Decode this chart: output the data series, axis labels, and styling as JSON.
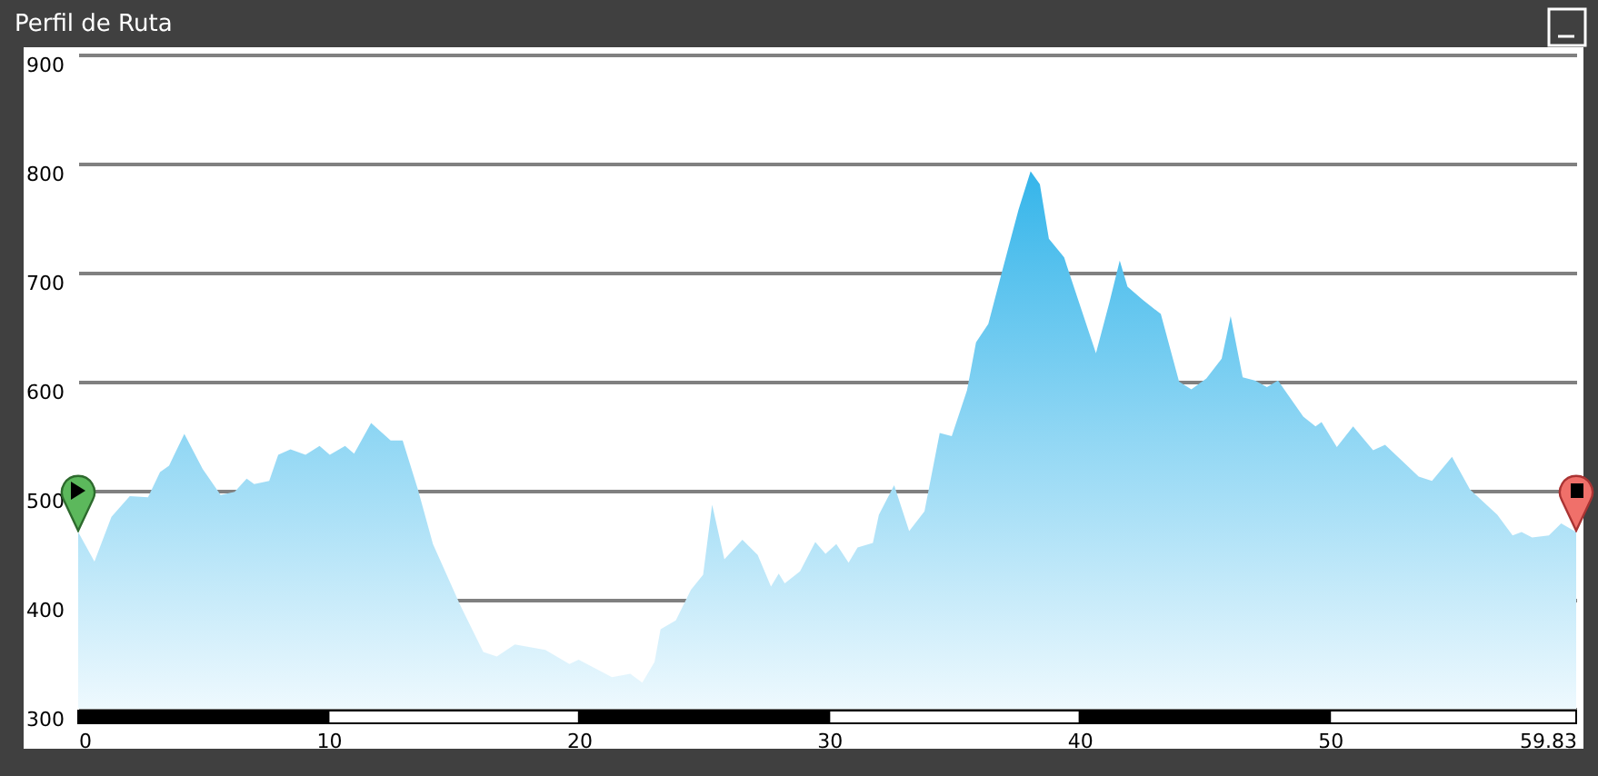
{
  "chart_data": {
    "type": "area",
    "title": "Perfil de Ruta",
    "x": [
      0,
      0.65,
      1.33,
      2.06,
      2.79,
      3.27,
      3.63,
      4.24,
      4.97,
      5.69,
      6.25,
      6.73,
      7.03,
      7.63,
      7.99,
      8.48,
      9.08,
      9.64,
      10.05,
      10.66,
      11.02,
      11.7,
      12.48,
      12.96,
      13.57,
      14.17,
      15.26,
      16.18,
      16.72,
      17.44,
      18.66,
      19.62,
      19.99,
      21.32,
      22.05,
      22.53,
      23.02,
      23.26,
      23.87,
      24.47,
      24.96,
      25.32,
      25.81,
      26.53,
      27.14,
      27.67,
      27.98,
      28.22,
      28.83,
      29.44,
      29.85,
      30.28,
      30.77,
      31.13,
      31.74,
      31.98,
      32.59,
      33.19,
      33.8,
      34.41,
      34.89,
      35.5,
      35.86,
      36.35,
      36.83,
      37.56,
      38.04,
      38.41,
      38.77,
      39.38,
      39.49,
      39.97,
      40.65,
      41.19,
      41.6,
      41.91,
      42.52,
      43.24,
      43.97,
      44.46,
      45.06,
      45.67,
      46.03,
      46.51,
      47.0,
      47.48,
      47.92,
      48.93,
      49.42,
      49.66,
      50.27,
      50.92,
      51.72,
      52.2,
      53.54,
      54.07,
      54.87,
      55.59,
      56.68,
      57.29,
      57.65,
      58.07,
      58.74,
      59.23,
      59.83
    ],
    "series": [
      {
        "color": "#35b5ea",
        "values": [
          462,
          435,
          476,
          495,
          494,
          517,
          523,
          552,
          520,
          496,
          499,
          511,
          506,
          509,
          533,
          538,
          533,
          541,
          533,
          541,
          534,
          562,
          546,
          546,
          501,
          451,
          395,
          352,
          348,
          359,
          354,
          341,
          345,
          329,
          332,
          324,
          343,
          373,
          381,
          409,
          423,
          487,
          437,
          455,
          441,
          412,
          424,
          415,
          426,
          453,
          442,
          451,
          434,
          448,
          452,
          478,
          505,
          463,
          481,
          553,
          550,
          592,
          636,
          653,
          695,
          758,
          793,
          781,
          731,
          714,
          706,
          673,
          626,
          673,
          711,
          687,
          675,
          662,
          600,
          593,
          603,
          621,
          660,
          604,
          601,
          595,
          601,
          568,
          559,
          563,
          540,
          559,
          537,
          542,
          513,
          509,
          531,
          501,
          478,
          459,
          462,
          457,
          459,
          470,
          462
        ]
      }
    ],
    "xlim": [
      0,
      59.83
    ],
    "xticks": [
      0,
      10,
      20,
      30,
      40,
      50,
      {
        "value": 59.83,
        "label": "59.83"
      }
    ],
    "ylim": [
      300,
      900
    ],
    "yticks": [
      300,
      400,
      500,
      600,
      700,
      800,
      900
    ],
    "grid": "y"
  }
}
